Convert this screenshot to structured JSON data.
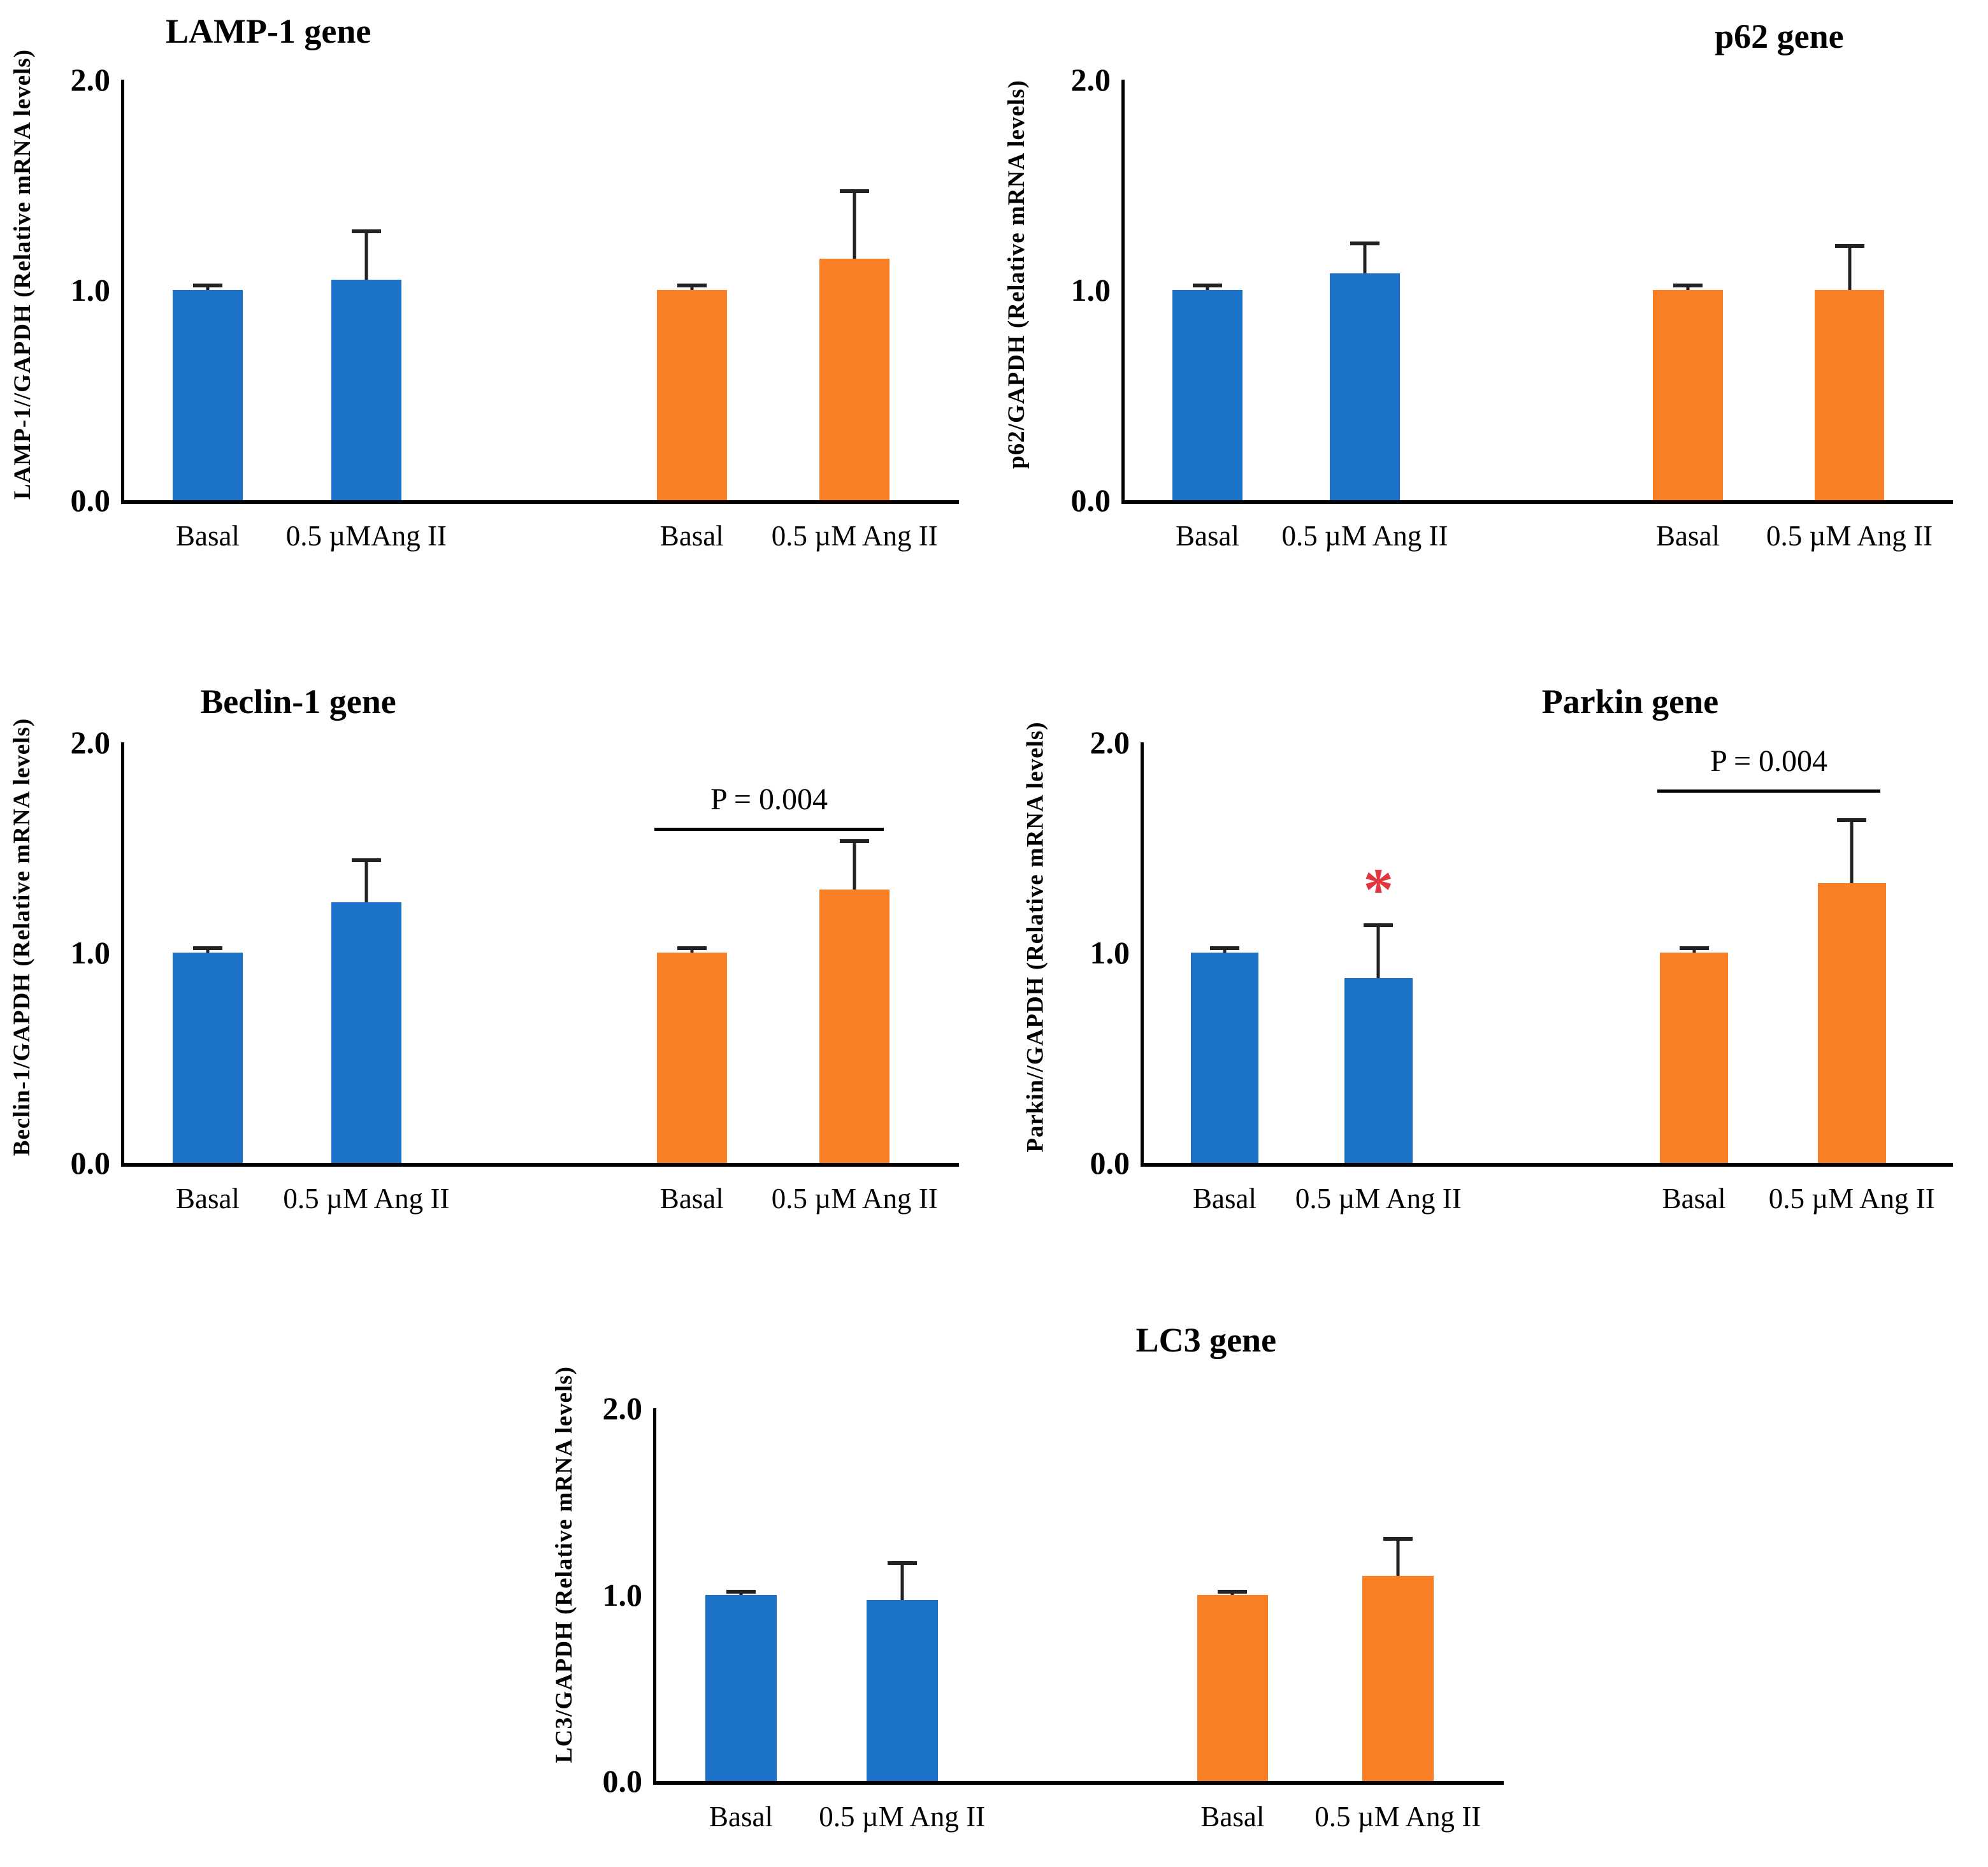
{
  "figure_title": "",
  "colors": {
    "bar_blue": "#1B72C8",
    "bar_orange": "#F87F23",
    "error_bar": "#222222",
    "asterisk_red": "#E0383E",
    "axis": "#000000"
  },
  "chart_data": [
    {
      "type": "bar",
      "title": "LAMP-1 gene",
      "ylabel": "LAMP-1//GAPDH  (Relative mRNA  levels)",
      "ylim": [
        0,
        2
      ],
      "yticks": [
        "2.0",
        "1.0",
        "0.0"
      ],
      "grid": false,
      "legend": "none",
      "bars": [
        {
          "label": "Basal",
          "value": 1.0,
          "error": 0.02,
          "color": "blue"
        },
        {
          "label": "0.5 µMAng II",
          "value": 1.05,
          "error": 0.23,
          "color": "blue"
        },
        {
          "label": "Basal",
          "value": 1.0,
          "error": 0.02,
          "color": "orange"
        },
        {
          "label": "0.5 µM Ang II",
          "value": 1.15,
          "error": 0.32,
          "color": "orange"
        }
      ],
      "annotations": []
    },
    {
      "type": "bar",
      "title": "p62 gene",
      "ylabel": "p62/GAPDH (Relative mRNA levels)",
      "ylim": [
        0,
        2
      ],
      "yticks": [
        "2.0",
        "1.0",
        "0.0"
      ],
      "grid": false,
      "legend": "none",
      "bars": [
        {
          "label": "Basal",
          "value": 1.0,
          "error": 0.02,
          "color": "blue"
        },
        {
          "label": "0.5 µM Ang II",
          "value": 1.08,
          "error": 0.14,
          "color": "blue"
        },
        {
          "label": "Basal",
          "value": 1.0,
          "error": 0.02,
          "color": "orange"
        },
        {
          "label": "0.5 µM Ang II",
          "value": 1.0,
          "error": 0.21,
          "color": "orange"
        }
      ],
      "annotations": []
    },
    {
      "type": "bar",
      "title": "Beclin-1 gene",
      "ylabel": "Beclin-1/GAPDH (Relative mRNA  levels)",
      "ylim": [
        0,
        2
      ],
      "yticks": [
        "2.0",
        "1.0",
        "0.0"
      ],
      "grid": false,
      "legend": "none",
      "bars": [
        {
          "label": "Basal",
          "value": 1.0,
          "error": 0.02,
          "color": "blue"
        },
        {
          "label": "0.5 µM Ang II",
          "value": 1.24,
          "error": 0.2,
          "color": "blue"
        },
        {
          "label": "Basal",
          "value": 1.0,
          "error": 0.02,
          "color": "orange"
        },
        {
          "label": "0.5 µM Ang II",
          "value": 1.3,
          "error": 0.23,
          "color": "orange"
        }
      ],
      "annotations": [
        {
          "kind": "sig-line",
          "label": "P = 0.004",
          "from_bar": 2,
          "to_bar": 3,
          "y": 1.58
        }
      ]
    },
    {
      "type": "bar",
      "title": "Parkin gene",
      "ylabel": "Parkin//GAPDH  (Relative mRNA  levels)",
      "ylim": [
        0,
        2
      ],
      "yticks": [
        "2.0",
        "1.0",
        "0.0"
      ],
      "grid": false,
      "legend": "none",
      "bars": [
        {
          "label": "Basal",
          "value": 1.0,
          "error": 0.02,
          "color": "blue"
        },
        {
          "label": "0.5 µM Ang II",
          "value": 0.88,
          "error": 0.25,
          "color": "blue"
        },
        {
          "label": "Basal",
          "value": 1.0,
          "error": 0.02,
          "color": "orange"
        },
        {
          "label": "0.5 µM Ang II",
          "value": 1.33,
          "error": 0.3,
          "color": "orange"
        }
      ],
      "annotations": [
        {
          "kind": "star",
          "symbol": "*",
          "bar": 1,
          "y": 1.3,
          "color": "red"
        },
        {
          "kind": "sig-line",
          "label": "P = 0.004",
          "from_bar": 2,
          "to_bar": 3,
          "y": 1.76
        }
      ]
    },
    {
      "type": "bar",
      "title": "LC3 gene",
      "ylabel": "LC3/GAPDH (Relative mRNA  levels)",
      "ylim": [
        0,
        2
      ],
      "yticks": [
        "2.0",
        "1.0",
        "0.0"
      ],
      "grid": false,
      "legend": "none",
      "bars": [
        {
          "label": "Basal",
          "value": 1.0,
          "error": 0.015,
          "color": "blue"
        },
        {
          "label": "0.5 µM Ang II",
          "value": 0.97,
          "error": 0.2,
          "color": "blue"
        },
        {
          "label": "Basal",
          "value": 1.0,
          "error": 0.015,
          "color": "orange"
        },
        {
          "label": "0.5 µM Ang II",
          "value": 1.1,
          "error": 0.2,
          "color": "orange"
        }
      ],
      "annotations": []
    }
  ]
}
